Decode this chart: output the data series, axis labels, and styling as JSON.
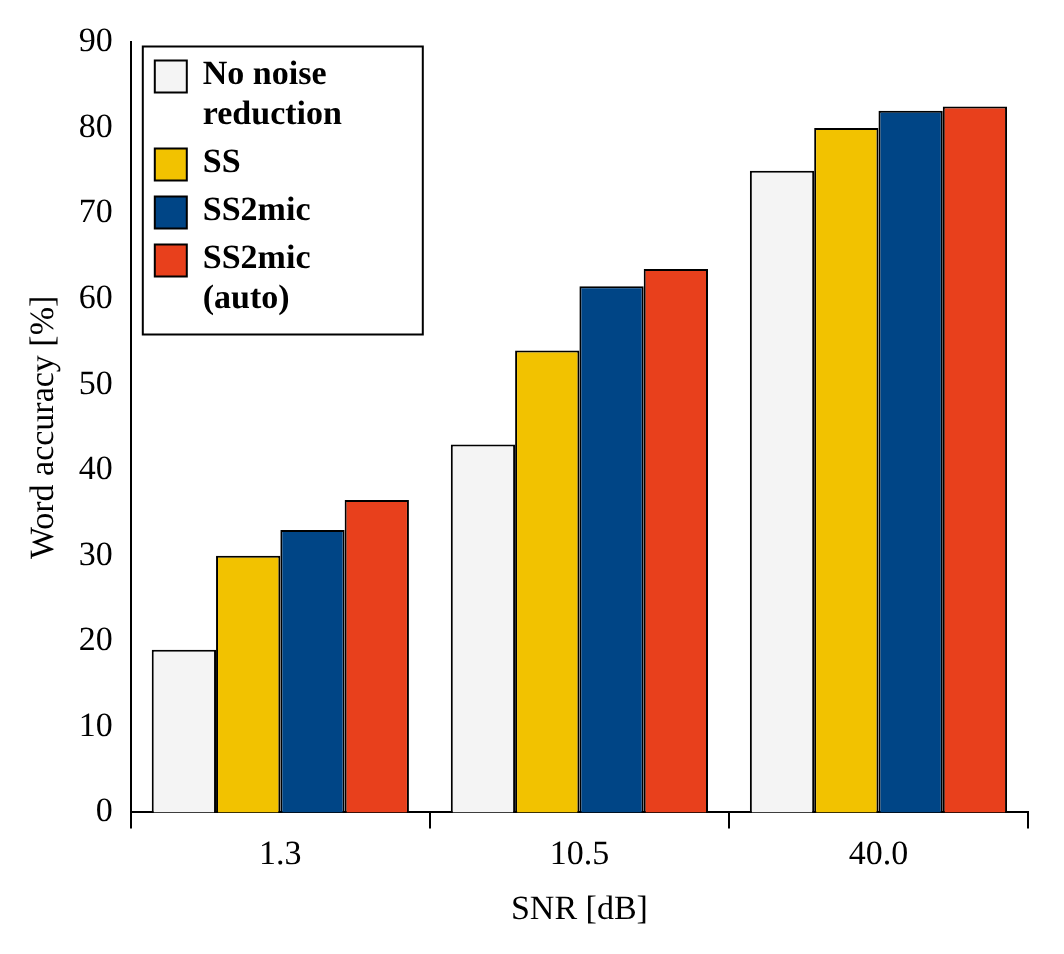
{
  "chart_data": {
    "type": "bar",
    "xlabel": "SNR [dB]",
    "ylabel": "Word accuracy [%]",
    "categories": [
      "1.3",
      "10.5",
      "40.0"
    ],
    "series": [
      {
        "name": "No noise reduction",
        "color": "#f4f4f4",
        "values": [
          19,
          43,
          75
        ]
      },
      {
        "name": "SS",
        "color": "#f2c200",
        "values": [
          30,
          54,
          80
        ]
      },
      {
        "name": "SS2mic",
        "color": "#004586",
        "values": [
          33,
          61.5,
          82
        ]
      },
      {
        "name": "SS2mic (auto)",
        "color": "#e8401c",
        "values": [
          36.5,
          63.5,
          82.5
        ]
      }
    ],
    "ylim": [
      0,
      90
    ],
    "yticks": [
      0,
      10,
      20,
      30,
      40,
      50,
      60,
      70,
      80,
      90
    ],
    "grid": false,
    "legend": "top left"
  }
}
